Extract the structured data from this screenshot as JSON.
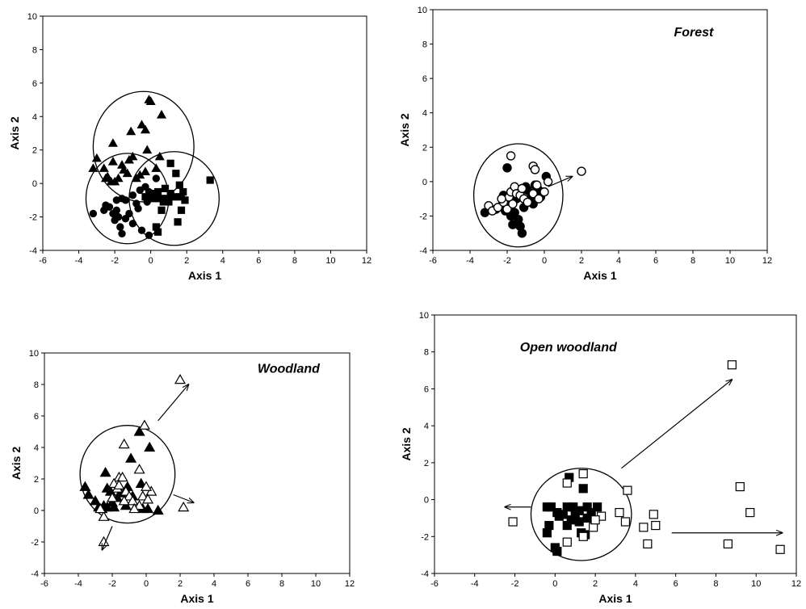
{
  "chart_data": [
    {
      "type": "scatter",
      "title": "",
      "xlabel": "Axis 1",
      "ylabel": "Axis 2",
      "xlim": [
        -6,
        12
      ],
      "ylim": [
        -4,
        10
      ],
      "xticks": [
        "-6",
        "-4",
        "-2",
        "0",
        "2",
        "4",
        "6",
        "8",
        "10",
        "12"
      ],
      "yticks": [
        "-4",
        "-2",
        "0",
        "2",
        "4",
        "6",
        "8",
        "10"
      ],
      "grid": false,
      "series": [
        {
          "marker": "triangle-filled",
          "values": [
            [
              -0.1,
              5.0
            ],
            [
              0.0,
              4.9
            ],
            [
              0.6,
              4.1
            ],
            [
              -1.1,
              3.1
            ],
            [
              -0.5,
              3.5
            ],
            [
              -0.3,
              3.2
            ],
            [
              -2.1,
              2.4
            ],
            [
              -0.2,
              2.0
            ],
            [
              -3.0,
              1.5
            ],
            [
              -1.0,
              1.6
            ],
            [
              0.5,
              1.6
            ],
            [
              -3.2,
              0.9
            ],
            [
              -2.6,
              0.9
            ],
            [
              -1.6,
              1.1
            ],
            [
              -1.5,
              0.8
            ],
            [
              -2.4,
              0.4
            ],
            [
              -2.0,
              0.1
            ],
            [
              -1.3,
              0.6
            ],
            [
              -2.1,
              1.3
            ],
            [
              -1.8,
              0.3
            ],
            [
              -0.6,
              0.5
            ],
            [
              0.3,
              0.9
            ],
            [
              -0.3,
              0.7
            ],
            [
              -2.2,
              0.1
            ],
            [
              -1.2,
              1.4
            ],
            [
              -0.8,
              0.3
            ],
            [
              -2.5,
              0.3
            ]
          ]
        },
        {
          "marker": "circle-filled",
          "values": [
            [
              -3.2,
              -1.8
            ],
            [
              -2.6,
              -1.6
            ],
            [
              -2.3,
              -1.4
            ],
            [
              -2.1,
              -1.8
            ],
            [
              -2.0,
              -2.2
            ],
            [
              -1.8,
              -2.0
            ],
            [
              -1.7,
              -2.6
            ],
            [
              -1.6,
              -3.0
            ],
            [
              -1.9,
              -1.0
            ],
            [
              -1.4,
              -1.0
            ],
            [
              -1.6,
              -0.9
            ],
            [
              -1.2,
              -1.8
            ],
            [
              -1.4,
              -2.1
            ],
            [
              -1.0,
              -2.4
            ],
            [
              -0.5,
              -2.8
            ],
            [
              -0.3,
              -0.2
            ],
            [
              -0.6,
              -0.4
            ],
            [
              -0.8,
              -1.2
            ],
            [
              -0.2,
              -1.1
            ],
            [
              0.3,
              0.3
            ],
            [
              -1.9,
              -1.6
            ],
            [
              -0.7,
              -1.5
            ],
            [
              -0.1,
              -0.5
            ],
            [
              -2.5,
              -1.3
            ],
            [
              -1.0,
              -0.7
            ],
            [
              -0.1,
              -3.1
            ]
          ]
        },
        {
          "marker": "square-filled",
          "values": [
            [
              0.2,
              -0.7
            ],
            [
              0.5,
              -0.9
            ],
            [
              0.8,
              -0.3
            ],
            [
              1.1,
              -0.6
            ],
            [
              1.3,
              -0.8
            ],
            [
              1.4,
              0.6
            ],
            [
              1.6,
              -0.1
            ],
            [
              1.8,
              -0.5
            ],
            [
              1.9,
              -1.0
            ],
            [
              1.7,
              -1.6
            ],
            [
              1.5,
              -2.3
            ],
            [
              1.0,
              -1.1
            ],
            [
              0.6,
              -1.6
            ],
            [
              0.3,
              -2.6
            ],
            [
              0.4,
              -2.9
            ],
            [
              3.3,
              0.2
            ],
            [
              0.7,
              -1.1
            ],
            [
              0.0,
              -0.6
            ],
            [
              -0.3,
              -0.8
            ],
            [
              0.9,
              -0.9
            ],
            [
              1.1,
              1.2
            ],
            [
              0.4,
              -0.5
            ],
            [
              0.1,
              -0.9
            ],
            [
              1.7,
              -0.8
            ]
          ]
        }
      ]
    },
    {
      "type": "scatter",
      "title": "Forest",
      "xlabel": "Axis 1",
      "ylabel": "Axis 2",
      "xlim": [
        -6,
        12
      ],
      "ylim": [
        -4,
        10
      ],
      "xticks": [
        "-6",
        "-4",
        "-2",
        "0",
        "2",
        "4",
        "6",
        "8",
        "10",
        "12"
      ],
      "yticks": [
        "-4",
        "-2",
        "0",
        "2",
        "4",
        "6",
        "8",
        "10"
      ],
      "grid": false,
      "series": [
        {
          "marker": "circle-filled",
          "values": [
            [
              -3.2,
              -1.8
            ],
            [
              -2.6,
              -1.6
            ],
            [
              -2.3,
              -1.4
            ],
            [
              -2.1,
              -1.7
            ],
            [
              -2.0,
              0.8
            ],
            [
              -1.8,
              -2.0
            ],
            [
              -1.7,
              -2.5
            ],
            [
              -1.6,
              -1.8
            ],
            [
              -1.4,
              -2.2
            ],
            [
              -1.3,
              -2.6
            ],
            [
              -1.2,
              -3.0
            ],
            [
              -1.5,
              -1.0
            ],
            [
              -1.1,
              -1.5
            ],
            [
              -0.8,
              -1.0
            ],
            [
              -0.5,
              -0.2
            ],
            [
              -0.3,
              -0.5
            ],
            [
              0.1,
              0.3
            ],
            [
              -0.9,
              -0.5
            ],
            [
              -0.6,
              -1.3
            ],
            [
              -1.9,
              -1.3
            ],
            [
              -2.2,
              -0.8
            ],
            [
              -1.0,
              -0.3
            ],
            [
              -0.2,
              -0.9
            ],
            [
              -1.6,
              -0.8
            ]
          ]
        },
        {
          "marker": "circle-open",
          "values": [
            [
              -1.8,
              1.5
            ],
            [
              -0.6,
              0.9
            ],
            [
              -0.5,
              0.7
            ],
            [
              -3.0,
              -1.4
            ],
            [
              -2.8,
              -1.7
            ],
            [
              -2.5,
              -1.5
            ],
            [
              -2.2,
              -1.2
            ],
            [
              -2.0,
              -1.6
            ],
            [
              -1.9,
              -0.9
            ],
            [
              -1.8,
              -0.6
            ],
            [
              -1.6,
              -0.3
            ],
            [
              -1.5,
              -0.7
            ],
            [
              -1.3,
              -0.8
            ],
            [
              -1.1,
              -1.0
            ],
            [
              -0.9,
              -1.2
            ],
            [
              -0.6,
              -0.7
            ],
            [
              -0.4,
              -0.2
            ],
            [
              0.2,
              0.0
            ],
            [
              0.0,
              -0.6
            ],
            [
              -0.3,
              -1.0
            ],
            [
              2.0,
              0.6
            ],
            [
              -1.7,
              -1.3
            ],
            [
              -1.2,
              -0.4
            ],
            [
              -2.3,
              -1.0
            ]
          ]
        }
      ]
    },
    {
      "type": "scatter",
      "title": "Woodland",
      "xlabel": "Axis 1",
      "ylabel": "Axis 2",
      "xlim": [
        -6,
        12
      ],
      "ylim": [
        -4,
        10
      ],
      "xticks": [
        "-6",
        "-4",
        "-2",
        "0",
        "2",
        "4",
        "6",
        "8",
        "10",
        "12"
      ],
      "yticks": [
        "-4",
        "-2",
        "0",
        "2",
        "4",
        "6",
        "8",
        "10"
      ],
      "grid": false,
      "series": [
        {
          "marker": "triangle-filled",
          "values": [
            [
              -0.4,
              5.0
            ],
            [
              0.2,
              4.0
            ],
            [
              -0.9,
              3.3
            ],
            [
              -2.4,
              2.4
            ],
            [
              -2.3,
              1.4
            ],
            [
              -3.6,
              1.5
            ],
            [
              -3.4,
              1.0
            ],
            [
              -3.0,
              0.6
            ],
            [
              -2.8,
              0.2
            ],
            [
              -2.6,
              0.1
            ],
            [
              -2.3,
              0.2
            ],
            [
              -2.0,
              0.5
            ],
            [
              -1.7,
              0.8
            ],
            [
              -1.2,
              0.3
            ],
            [
              -0.8,
              0.9
            ],
            [
              -0.3,
              1.7
            ],
            [
              0.1,
              0.1
            ],
            [
              0.7,
              0.0
            ],
            [
              -2.5,
              0.3
            ],
            [
              -1.5,
              1.1
            ],
            [
              -0.2,
              0.1
            ],
            [
              -1.1,
              1.5
            ],
            [
              -2.1,
              1.2
            ],
            [
              -1.9,
              0.2
            ]
          ]
        },
        {
          "marker": "triangle-open",
          "values": [
            [
              2.0,
              8.3
            ],
            [
              -0.1,
              5.4
            ],
            [
              -1.3,
              4.2
            ],
            [
              -0.4,
              2.6
            ],
            [
              -1.6,
              2.1
            ],
            [
              -1.4,
              2.1
            ],
            [
              -1.9,
              1.7
            ],
            [
              -1.7,
              1.4
            ],
            [
              -1.2,
              1.2
            ],
            [
              -1.0,
              0.9
            ],
            [
              -0.8,
              0.6
            ],
            [
              -0.4,
              0.3
            ],
            [
              0.3,
              1.2
            ],
            [
              0.0,
              1.5
            ],
            [
              2.2,
              0.2
            ],
            [
              -2.5,
              -2.0
            ],
            [
              -2.5,
              -0.4
            ],
            [
              -2.7,
              0.1
            ],
            [
              -1.3,
              0.6
            ],
            [
              -0.2,
              0.9
            ],
            [
              -1.6,
              1.6
            ],
            [
              -2.0,
              0.8
            ],
            [
              0.1,
              0.7
            ],
            [
              -0.7,
              0.1
            ]
          ]
        }
      ]
    },
    {
      "type": "scatter",
      "title": "Open woodland",
      "xlabel": "Axis 1",
      "ylabel": "Axis 2",
      "xlim": [
        -6,
        12
      ],
      "ylim": [
        -4,
        10
      ],
      "xticks": [
        "-6",
        "-4",
        "-2",
        "0",
        "2",
        "4",
        "6",
        "8",
        "10",
        "12"
      ],
      "yticks": [
        "-4",
        "-2",
        "0",
        "2",
        "4",
        "6",
        "8",
        "10"
      ],
      "grid": false,
      "series": [
        {
          "marker": "square-filled",
          "values": [
            [
              0.7,
              1.2
            ],
            [
              1.4,
              0.6
            ],
            [
              -0.4,
              -0.4
            ],
            [
              -0.2,
              -0.4
            ],
            [
              0.1,
              -0.7
            ],
            [
              0.4,
              -0.8
            ],
            [
              0.9,
              -0.4
            ],
            [
              1.2,
              -0.6
            ],
            [
              1.6,
              -0.4
            ],
            [
              2.1,
              -0.4
            ],
            [
              0.2,
              -0.9
            ],
            [
              -0.3,
              -1.4
            ],
            [
              -0.4,
              -1.8
            ],
            [
              0.6,
              -1.4
            ],
            [
              1.2,
              -1.2
            ],
            [
              1.5,
              -1.9
            ],
            [
              1.0,
              -0.8
            ],
            [
              0.0,
              -2.6
            ],
            [
              0.1,
              -2.8
            ],
            [
              1.6,
              -1.0
            ],
            [
              0.6,
              -0.4
            ],
            [
              1.8,
              -0.7
            ],
            [
              1.3,
              -1.8
            ],
            [
              0.8,
              -1.1
            ]
          ]
        },
        {
          "marker": "square-open",
          "values": [
            [
              8.8,
              7.3
            ],
            [
              1.4,
              1.4
            ],
            [
              0.6,
              0.9
            ],
            [
              3.6,
              0.5
            ],
            [
              9.2,
              0.7
            ],
            [
              9.7,
              -0.7
            ],
            [
              -2.1,
              -1.2
            ],
            [
              2.3,
              -0.9
            ],
            [
              3.2,
              -0.7
            ],
            [
              3.5,
              -1.2
            ],
            [
              4.9,
              -0.8
            ],
            [
              5.0,
              -1.4
            ],
            [
              4.4,
              -1.5
            ],
            [
              4.6,
              -2.4
            ],
            [
              8.6,
              -2.4
            ],
            [
              11.2,
              -2.7
            ],
            [
              1.9,
              -1.5
            ],
            [
              1.4,
              -2.0
            ],
            [
              0.6,
              -2.3
            ],
            [
              2.0,
              -1.1
            ]
          ]
        }
      ]
    }
  ]
}
